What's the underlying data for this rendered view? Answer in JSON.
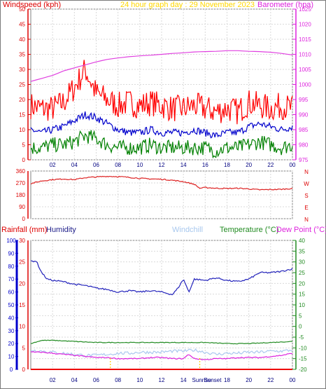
{
  "chart_data": [
    {
      "type": "line",
      "panel": "wind",
      "title": "24 hour graph day : 29 November 2023",
      "ylabel_left": "Windspeed (kph)",
      "ylabel_right": "Barometer (hpa)",
      "x_ticks": [
        "02",
        "04",
        "06",
        "08",
        "10",
        "12",
        "14",
        "16",
        "18",
        "20",
        "22",
        "00"
      ],
      "y_left_ticks": [
        "0",
        "5",
        "10",
        "15",
        "20",
        "25",
        "30",
        "35",
        "40",
        "45",
        "50"
      ],
      "y_right_ticks": [
        "975",
        "980",
        "985",
        "990",
        "995",
        "1000",
        "1005",
        "1010",
        "1015",
        "1020",
        "1025"
      ],
      "ylim_left": [
        0,
        50
      ],
      "ylim_right": [
        975,
        1025
      ],
      "xlim": [
        0,
        24
      ],
      "grid": true,
      "series": [
        {
          "key": "gust",
          "color": "#ff0000",
          "axis": "left",
          "x": [
            0,
            1,
            2,
            3,
            4,
            4.5,
            5,
            5.5,
            6,
            7,
            8,
            9,
            10,
            11,
            12,
            13,
            14,
            15,
            16,
            17,
            18,
            19,
            20,
            21,
            22,
            23,
            24
          ],
          "y": [
            18,
            17,
            17,
            19,
            24,
            27,
            30,
            26,
            22,
            20,
            18,
            19,
            18,
            19,
            18,
            17,
            17,
            18,
            17,
            16,
            17,
            16,
            19,
            18,
            17,
            18,
            17
          ]
        },
        {
          "key": "average",
          "color": "#0000cc",
          "axis": "left",
          "x": [
            0,
            1,
            2,
            3,
            4,
            5,
            6,
            7,
            8,
            9,
            10,
            11,
            12,
            13,
            14,
            15,
            16,
            17,
            18,
            19,
            20,
            21,
            22,
            23,
            24
          ],
          "y": [
            10,
            9,
            10,
            11,
            13,
            15,
            14,
            12,
            10,
            9,
            9,
            10,
            9,
            9,
            9,
            10,
            9,
            8,
            9,
            9,
            11,
            12,
            11,
            10,
            11
          ]
        },
        {
          "key": "lull",
          "color": "#008000",
          "axis": "left",
          "x": [
            0,
            1,
            2,
            3,
            4,
            5,
            6,
            7,
            8,
            9,
            10,
            11,
            12,
            13,
            14,
            15,
            16,
            17,
            18,
            19,
            20,
            21,
            22,
            23,
            24
          ],
          "y": [
            4,
            4,
            5,
            5,
            6,
            8,
            7,
            5,
            4,
            4,
            4,
            5,
            4,
            4,
            4,
            4,
            4,
            3,
            4,
            4,
            5,
            6,
            5,
            4,
            5
          ]
        },
        {
          "key": "barometer",
          "color": "#e040e0",
          "axis": "right",
          "x": [
            0,
            1,
            2,
            3,
            4,
            5,
            6,
            7,
            8,
            9,
            10,
            11,
            12,
            13,
            14,
            15,
            16,
            17,
            18,
            19,
            20,
            21,
            22,
            23,
            24
          ],
          "y": [
            1001,
            1002,
            1003,
            1004.5,
            1005.5,
            1006.5,
            1007.5,
            1008.3,
            1008.8,
            1009.2,
            1009.5,
            1009.7,
            1010,
            1010.3,
            1010.5,
            1010.8,
            1010.9,
            1011,
            1011.2,
            1011.2,
            1011,
            1010.9,
            1010.7,
            1010.3,
            1009.8
          ]
        }
      ]
    },
    {
      "type": "line",
      "panel": "direction",
      "y_left_ticks": [
        "0",
        "90",
        "180",
        "270",
        "360"
      ],
      "y_right_ticks": [
        "N",
        "E",
        "S",
        "W",
        "N"
      ],
      "ylim": [
        0,
        360
      ],
      "xlim": [
        0,
        24
      ],
      "grid": true,
      "series": [
        {
          "key": "direction",
          "color": "#dd2222",
          "x": [
            0,
            1,
            2,
            3,
            4,
            5,
            6,
            7,
            8,
            9,
            10,
            11,
            12,
            13,
            14,
            15,
            15.5,
            16,
            17,
            18,
            19,
            20,
            21,
            22,
            23,
            24
          ],
          "y": [
            265,
            285,
            295,
            300,
            295,
            310,
            315,
            320,
            318,
            312,
            305,
            300,
            298,
            290,
            280,
            260,
            230,
            235,
            230,
            228,
            230,
            225,
            218,
            220,
            222,
            228
          ]
        }
      ]
    },
    {
      "type": "line",
      "panel": "temperature",
      "legend": [
        "Rainfall (mm)",
        "Humidity",
        "Windchill",
        "Temperature (°C)",
        "Dew Point (°C)"
      ],
      "x_ticks": [
        "02",
        "04",
        "06",
        "08",
        "10",
        "12",
        "14",
        "16",
        "18",
        "20",
        "22",
        "00"
      ],
      "y_humidity_ticks": [
        "0",
        "10",
        "20",
        "30",
        "40",
        "50",
        "60",
        "70",
        "80",
        "90",
        "100"
      ],
      "y_rain_ticks": [
        "0",
        "5",
        "10",
        "15",
        "20",
        "25",
        "30"
      ],
      "y_temp_ticks": [
        "-20",
        "-15",
        "-10",
        "-5",
        "0",
        "5",
        "10",
        "15",
        "20",
        "25",
        "30",
        "35",
        "40"
      ],
      "ylim_humidity": [
        0,
        100
      ],
      "ylim_rain": [
        0,
        30
      ],
      "ylim_temp": [
        -20,
        40
      ],
      "xlim": [
        0,
        24
      ],
      "markers": [
        "Sunrise",
        "Sunset"
      ],
      "marker_times": [
        7.3,
        15.5
      ],
      "grid": true,
      "series": [
        {
          "key": "humidity",
          "color": "#2222bb",
          "axis": "humidity",
          "x": [
            0,
            0.5,
            1,
            1.5,
            2,
            3,
            4,
            5,
            6,
            7,
            8,
            9,
            10,
            11,
            12,
            13,
            13.5,
            14,
            14.5,
            15,
            16,
            17,
            18,
            19,
            20,
            21,
            22,
            23,
            24
          ],
          "y": [
            84,
            84,
            75,
            70,
            69,
            68,
            66,
            65,
            63,
            62,
            60,
            61,
            60,
            61,
            60,
            58,
            63,
            70,
            60,
            70,
            69,
            71,
            69,
            68,
            70,
            75,
            75,
            76,
            78
          ]
        },
        {
          "key": "temperature",
          "color": "#228b22",
          "axis": "temp",
          "x": [
            0,
            1,
            2,
            4,
            6,
            8,
            10,
            12,
            14,
            16,
            18,
            20,
            22,
            24
          ],
          "y": [
            -8,
            -6.5,
            -6.5,
            -7,
            -7.5,
            -7.5,
            -7.5,
            -7.5,
            -7.5,
            -7.5,
            -8,
            -8,
            -7.5,
            -7
          ]
        },
        {
          "key": "windchill",
          "color": "#aac8ee",
          "axis": "temp",
          "x": [
            0,
            1,
            2,
            3,
            4,
            5,
            6,
            7,
            8,
            9,
            10,
            11,
            12,
            13,
            14,
            15,
            16,
            17,
            18,
            19,
            20,
            21,
            22,
            23,
            24
          ],
          "y": [
            -11,
            -11.5,
            -12,
            -12.5,
            -13,
            -13.5,
            -13.5,
            -13,
            -12.5,
            -12.5,
            -12,
            -12,
            -12,
            -11.5,
            -11.5,
            -11,
            -12,
            -13,
            -12.5,
            -12.5,
            -12,
            -12,
            -11.5,
            -11.5,
            -11
          ]
        },
        {
          "key": "dewpoint",
          "color": "#dd22dd",
          "axis": "temp",
          "x": [
            0,
            1,
            2,
            3,
            4,
            5,
            6,
            7,
            8,
            9,
            10,
            11,
            12,
            13,
            14,
            14.5,
            15,
            16,
            17,
            18,
            19,
            20,
            21,
            22,
            23,
            24
          ],
          "y": [
            -12,
            -12,
            -12.5,
            -13,
            -13.5,
            -14,
            -14.5,
            -14.5,
            -15,
            -15,
            -15,
            -14.5,
            -14.5,
            -15,
            -15,
            -13,
            -15,
            -15.5,
            -15,
            -15,
            -14.5,
            -14.5,
            -14.5,
            -14,
            -13.5,
            -12.5
          ]
        },
        {
          "key": "rainfall",
          "color": "#ee0000",
          "axis": "rain",
          "x": [
            0,
            24
          ],
          "y": [
            0,
            0
          ]
        }
      ]
    }
  ]
}
